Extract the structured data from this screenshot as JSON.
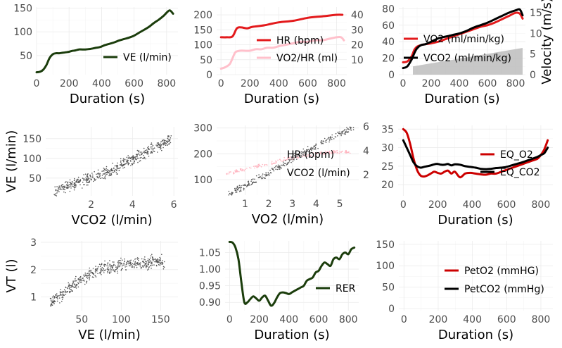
{
  "chart_data": [
    {
      "id": "p1",
      "type": "line",
      "xlabel": "Duration (s)",
      "ylabel": "",
      "xlim": [
        0,
        870
      ],
      "ylim": [
        10,
        152
      ],
      "xticks": [
        0,
        200,
        400,
        600,
        800
      ],
      "yticks": [
        50,
        100,
        150
      ],
      "legend": "bottom-right",
      "series": [
        {
          "name": "VE (l/min)",
          "color": "#1b3d0c",
          "x": [
            0,
            20,
            40,
            60,
            80,
            100,
            120,
            140,
            160,
            180,
            200,
            220,
            240,
            260,
            280,
            300,
            330,
            360,
            390,
            420,
            450,
            480,
            510,
            540,
            570,
            600,
            630,
            660,
            690,
            720,
            750,
            780,
            800,
            820,
            840
          ],
          "y": [
            15,
            16,
            20,
            30,
            45,
            53,
            55,
            55,
            56,
            57,
            58,
            60,
            61,
            63,
            63,
            63,
            64,
            66,
            68,
            72,
            75,
            78,
            82,
            85,
            88,
            92,
            98,
            104,
            110,
            118,
            125,
            133,
            140,
            145,
            138
          ]
        }
      ]
    },
    {
      "id": "p2",
      "type": "line",
      "xlabel": "Duration (s)",
      "ylabel": "",
      "xlim": [
        -30,
        870
      ],
      "ylim": [
        0,
        226
      ],
      "y2lim": [
        0,
        45.2
      ],
      "xticks": [
        0,
        200,
        400,
        600,
        800
      ],
      "yticks": [
        0,
        50,
        100,
        150,
        200
      ],
      "y2ticks": [
        10,
        20,
        30,
        40
      ],
      "legend": "right",
      "band": {
        "color": "#ffc0cb",
        "x": [
          0,
          860
        ],
        "y1": [
          0,
          4
        ],
        "y2": [
          0,
          28
        ]
      },
      "series": [
        {
          "name": "HR (bpm)",
          "color": "#e31a1c",
          "axis": "left",
          "x": [
            0,
            40,
            80,
            110,
            140,
            180,
            220,
            300,
            400,
            500,
            600,
            700,
            800,
            840
          ],
          "y": [
            125,
            125,
            128,
            155,
            158,
            155,
            160,
            165,
            175,
            180,
            190,
            195,
            200,
            200
          ]
        },
        {
          "name": "VO2/HR (ml)",
          "color": "#ffc0cb",
          "axis": "right",
          "x": [
            0,
            30,
            60,
            80,
            100,
            130,
            160,
            200,
            240,
            280,
            320,
            360,
            400,
            450,
            500,
            550,
            600,
            650,
            700,
            750,
            800,
            830,
            850
          ],
          "y": [
            4,
            5,
            7,
            11,
            15,
            16,
            16,
            16,
            17,
            17,
            18,
            18,
            19,
            20,
            21,
            22,
            22,
            23,
            23,
            24,
            25,
            25,
            23
          ]
        }
      ]
    },
    {
      "id": "p3",
      "type": "line",
      "xlabel": "Duration (s)",
      "ylabel": "Velocity (m/s)",
      "xlim": [
        -30,
        870
      ],
      "ylim": [
        0,
        82
      ],
      "y2lim": [
        0,
        16.4
      ],
      "xticks": [
        0,
        200,
        400,
        600,
        800
      ],
      "yticks": [
        0,
        20,
        40,
        60,
        80
      ],
      "y2ticks": [
        0,
        5,
        10,
        15
      ],
      "legend": "right",
      "area": {
        "name": "Velocity",
        "color": "#bdbdbd",
        "x": [
          70,
          70,
          850
        ],
        "y": [
          0,
          2,
          6.5
        ]
      },
      "series": [
        {
          "name": "VO2 (ml/min/kg)",
          "color": "#e31a1c",
          "x": [
            0,
            30,
            60,
            80,
            100,
            130,
            160,
            200,
            250,
            300,
            350,
            400,
            450,
            500,
            550,
            600,
            650,
            700,
            750,
            800,
            830,
            850
          ],
          "y": [
            15,
            16,
            22,
            30,
            34,
            36,
            37,
            38,
            40,
            43,
            46,
            49,
            52,
            55,
            58,
            60,
            63,
            67,
            71,
            75,
            74,
            68
          ]
        },
        {
          "name": "VCO2 (ml/min/kg)",
          "color": "#000000",
          "x": [
            0,
            30,
            60,
            80,
            100,
            130,
            160,
            200,
            250,
            300,
            350,
            400,
            450,
            500,
            550,
            600,
            650,
            700,
            750,
            800,
            830,
            850
          ],
          "y": [
            8,
            10,
            18,
            26,
            32,
            36,
            37,
            40,
            44,
            46,
            48,
            50,
            53,
            57,
            60,
            63,
            67,
            71,
            75,
            78,
            79,
            72
          ]
        }
      ]
    },
    {
      "id": "p4",
      "type": "scatter",
      "xlabel": "VCO2 (l/min)",
      "ylabel": "VE (l/min)",
      "xlim": [
        -0.2,
        6.2
      ],
      "ylim": [
        5,
        180
      ],
      "xticks": [
        2,
        4,
        6
      ],
      "yticks": [
        50,
        100,
        150
      ],
      "series": [
        {
          "name": "VE vs VCO2",
          "color": "#555555",
          "points": [
            [
              0.2,
              15
            ],
            [
              0.5,
              25
            ],
            [
              1,
              32
            ],
            [
              1.5,
              40
            ],
            [
              2,
              50
            ],
            [
              2.5,
              60
            ],
            [
              3,
              70
            ],
            [
              3.5,
              85
            ],
            [
              4,
              98
            ],
            [
              4.5,
              112
            ],
            [
              5,
              125
            ],
            [
              5.5,
              138
            ],
            [
              5.9,
              148
            ]
          ],
          "spread": 12,
          "count": 500
        }
      ]
    },
    {
      "id": "p5",
      "type": "scatter",
      "xlabel": "VO2 (l/min)",
      "ylabel": "",
      "xlim": [
        -0.2,
        5.8
      ],
      "ylim": [
        40,
        310
      ],
      "y2lim": [
        0.3,
        6.1
      ],
      "xticks": [
        1,
        2,
        3,
        4,
        5
      ],
      "yticks": [
        100,
        200,
        300
      ],
      "y2ticks": [
        2,
        4,
        6
      ],
      "legend": "right",
      "series": [
        {
          "name": "HR (bpm)",
          "color": "#ffb6c1",
          "axis": "left",
          "points": [
            [
              0.2,
              120
            ],
            [
              1,
              140
            ],
            [
              2,
              160
            ],
            [
              3,
              185
            ],
            [
              4,
              198
            ],
            [
              5,
              210
            ],
            [
              5.5,
              205
            ]
          ],
          "spread": 6,
          "count": 200
        },
        {
          "name": "VCO2 (l/min)",
          "color": "#555555",
          "axis": "right",
          "points": [
            [
              0.3,
              0.4
            ],
            [
              1,
              1.1
            ],
            [
              2,
              2.1
            ],
            [
              3,
              3.3
            ],
            [
              4,
              4.4
            ],
            [
              5,
              5.4
            ],
            [
              5.6,
              5.9
            ]
          ],
          "spread": 0.25,
          "count": 300
        }
      ]
    },
    {
      "id": "p6",
      "type": "line",
      "xlabel": "Duration (s)",
      "ylabel": "",
      "xlim": [
        -30,
        870
      ],
      "ylim": [
        17,
        36
      ],
      "xticks": [
        0,
        200,
        400,
        600,
        800
      ],
      "yticks": [
        20,
        25,
        30,
        35
      ],
      "legend": "right",
      "series": [
        {
          "name": "EQ_O2",
          "color": "#cc0000",
          "x": [
            0,
            20,
            40,
            60,
            80,
            100,
            120,
            140,
            160,
            180,
            200,
            220,
            240,
            260,
            280,
            300,
            330,
            360,
            390,
            420,
            450,
            480,
            510,
            540,
            570,
            600,
            630,
            660,
            690,
            720,
            750,
            780,
            800,
            820,
            840
          ],
          "y": [
            35,
            34,
            31,
            27,
            24,
            22.5,
            22.2,
            22.5,
            23,
            23.5,
            23.2,
            23,
            23.5,
            23.8,
            23,
            23.5,
            22,
            23,
            23.2,
            23,
            22.8,
            22.7,
            23,
            23,
            23.5,
            24,
            24.5,
            25,
            25.5,
            26,
            26.5,
            27,
            28,
            29.5,
            32
          ]
        },
        {
          "name": "EQ_CO2",
          "color": "#000000",
          "x": [
            0,
            20,
            40,
            60,
            80,
            100,
            120,
            140,
            160,
            180,
            200,
            220,
            240,
            260,
            280,
            300,
            330,
            360,
            390,
            420,
            450,
            480,
            510,
            540,
            570,
            600,
            630,
            660,
            690,
            720,
            750,
            780,
            800,
            820,
            840
          ],
          "y": [
            32,
            30,
            28,
            26,
            25,
            24.6,
            24.8,
            25,
            25.2,
            25.5,
            25.6,
            25.4,
            25.4,
            25.6,
            25.2,
            25.5,
            25.4,
            25,
            24.8,
            24.6,
            24.3,
            24.2,
            24.3,
            24.5,
            24.6,
            24.8,
            25.2,
            25.6,
            26,
            26.5,
            27,
            27.5,
            28,
            28.5,
            30
          ]
        }
      ]
    },
    {
      "id": "p7",
      "type": "scatter",
      "xlabel": "VE (l/min)",
      "ylabel": "VT (l)",
      "xlim": [
        -2,
        172
      ],
      "ylim": [
        0.5,
        3.05
      ],
      "xticks": [
        50,
        100,
        150
      ],
      "yticks": [
        1,
        2,
        3
      ],
      "series": [
        {
          "name": "VT vs VE",
          "color": "#555555",
          "points": [
            [
              10,
              0.8
            ],
            [
              20,
              1.0
            ],
            [
              30,
              1.2
            ],
            [
              40,
              1.45
            ],
            [
              50,
              1.65
            ],
            [
              60,
              1.8
            ],
            [
              70,
              1.95
            ],
            [
              80,
              2.05
            ],
            [
              90,
              2.1
            ],
            [
              100,
              2.15
            ],
            [
              110,
              2.2
            ],
            [
              120,
              2.25
            ],
            [
              130,
              2.28
            ],
            [
              140,
              2.3
            ],
            [
              150,
              2.3
            ],
            [
              155,
              2.2
            ]
          ],
          "spread": 0.2,
          "count": 500
        }
      ]
    },
    {
      "id": "p8",
      "type": "line",
      "xlabel": "Duration (s)",
      "ylabel": "",
      "xlim": [
        -30,
        870
      ],
      "ylim": [
        0.875,
        1.085
      ],
      "xticks": [
        0,
        200,
        400,
        600,
        800
      ],
      "yticks": [
        0.9,
        0.95,
        1.0,
        1.05
      ],
      "yticklabels": [
        "0.90",
        "0.95",
        "1.00",
        "1.05"
      ],
      "legend": "right",
      "series": [
        {
          "name": "RER",
          "color": "#1b3d0c",
          "x": [
            0,
            20,
            40,
            60,
            80,
            100,
            120,
            140,
            160,
            180,
            200,
            220,
            240,
            260,
            280,
            300,
            320,
            340,
            360,
            380,
            400,
            420,
            440,
            460,
            480,
            500,
            520,
            540,
            560,
            580,
            600,
            620,
            640,
            660,
            680,
            700,
            720,
            740,
            760,
            780,
            800,
            820,
            840
          ],
          "y": [
            1.082,
            1.08,
            1.065,
            1.03,
            0.96,
            0.9,
            0.9,
            0.91,
            0.918,
            0.912,
            0.905,
            0.915,
            0.92,
            0.905,
            0.89,
            0.898,
            0.915,
            0.928,
            0.93,
            0.928,
            0.925,
            0.93,
            0.935,
            0.94,
            0.945,
            0.95,
            0.965,
            0.97,
            0.975,
            0.99,
            0.995,
            1.01,
            1.02,
            1.015,
            1.01,
            1.03,
            1.035,
            1.03,
            1.045,
            1.05,
            1.045,
            1.06,
            1.065
          ]
        }
      ]
    },
    {
      "id": "p9",
      "type": "line",
      "xlabel": "Duration (s)",
      "ylabel": "",
      "xlim": [
        -30,
        870
      ],
      "ylim": [
        -5,
        158
      ],
      "xticks": [
        0,
        200,
        400,
        600,
        800
      ],
      "yticks": [
        0,
        50,
        100,
        150
      ],
      "legend": "right",
      "series": [
        {
          "name": "PetO2 (mmHG)",
          "color": "#cc0000",
          "x": [],
          "y": []
        },
        {
          "name": "PetCO2 (mmHg)",
          "color": "#000000",
          "x": [],
          "y": []
        }
      ]
    }
  ]
}
